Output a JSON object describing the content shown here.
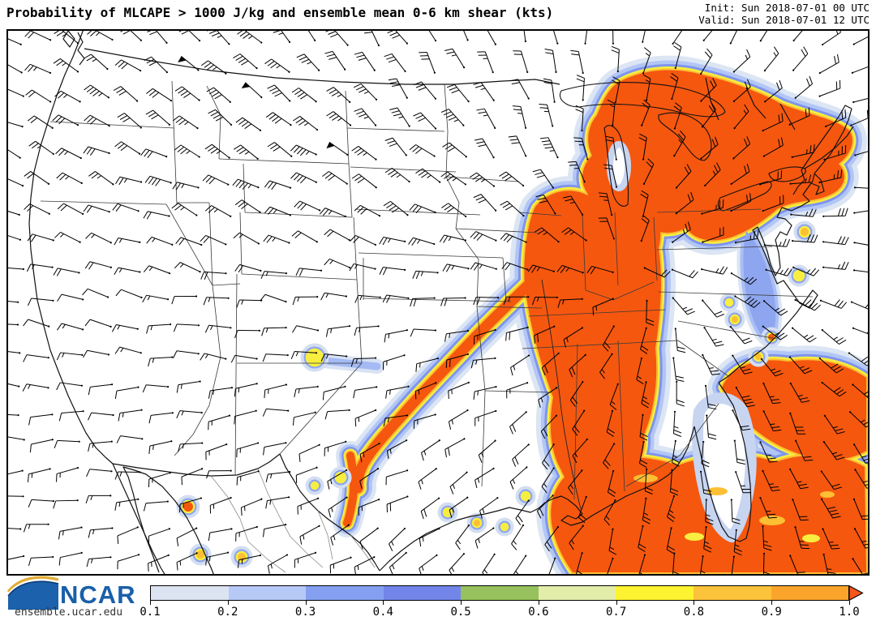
{
  "header": {
    "title": "Probability of MLCAPE > 1000 J/kg and ensemble mean 0-6 km shear (kts)",
    "init_label": "Init: Sun 2018-07-01 00 UTC",
    "valid_label": "Valid: Sun 2018-07-01 12 UTC"
  },
  "footer": {
    "logo_text": "NCAR",
    "site_url": "ensemble.ucar.edu"
  },
  "chart_data": {
    "type": "heatmap",
    "title": "Probability of MLCAPE > 1000 J/kg and ensemble mean 0-6 km shear (kts)",
    "init_time": "Sun 2018-07-01 00 UTC",
    "valid_time": "Sun 2018-07-01 12 UTC",
    "region": "Continental United States with southern Canada and northern Mexico",
    "layers": [
      "Probability of MLCAPE > 1000 J/kg shown as filled color contours",
      "Ensemble mean 0-6 km shear shown as wind barbs (kts)",
      "State, national and coastline borders"
    ],
    "colorbar": {
      "orientation": "horizontal",
      "tick_labels": [
        "0.1",
        "0.2",
        "0.3",
        "0.4",
        "0.5",
        "0.6",
        "0.7",
        "0.8",
        "0.9",
        "1.0"
      ],
      "segment_colors": [
        "#dce4f1",
        "#b7c9f7",
        "#85a0f1",
        "#7285e9",
        "#96c15c",
        "#e3edaa",
        "#fdf330",
        "#fcc23a",
        "#fba42c"
      ],
      "overflow_arrow_color": "#f4581c",
      "range": [
        0.1,
        1.0
      ]
    },
    "probability_core_color": "#f5570f",
    "high_probability_regions": [
      "Upper Midwest and Great Lakes into southern Ontario and Quebec",
      "Mississippi Valley from Illinois south to Louisiana and the central Gulf coast",
      "Diagonal band from Iowa through Kansas and Oklahoma into Texas",
      "Northeast: upstate New York, Vermont and New Hampshire",
      "Atlantic waters off the Carolinas",
      "Gulf of Mexico, Florida coastal waters and the Bahamas",
      "Isolated spots over northwest Mexico and the mid-Atlantic coastal waters"
    ]
  }
}
